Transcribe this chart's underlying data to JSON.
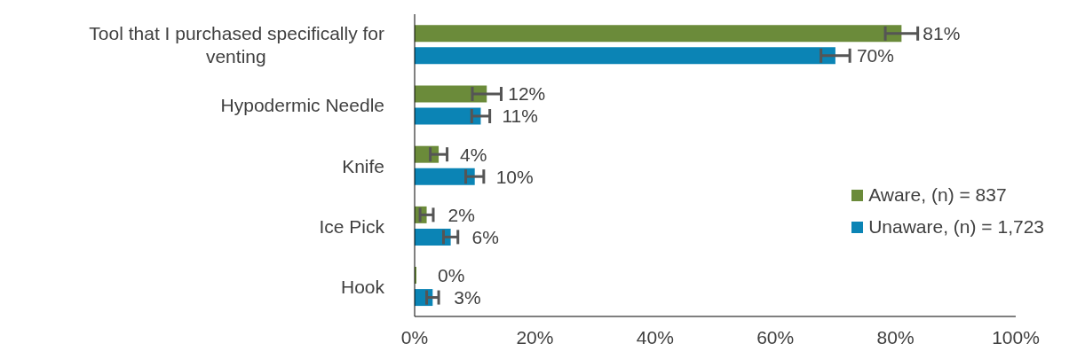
{
  "chart_data": {
    "type": "bar",
    "orientation": "horizontal",
    "categories": [
      "Tool that I purchased specifically for venting",
      "Hypodermic Needle",
      "Knife",
      "Ice Pick",
      "Hook"
    ],
    "series": [
      {
        "name": "Aware, (n) = 837",
        "color": "#6b8b3a",
        "values": [
          81,
          12,
          4,
          2,
          0
        ],
        "value_labels": [
          "81%",
          "12%",
          "4%",
          "2%",
          "0%"
        ],
        "errors": [
          2.7,
          2.4,
          1.4,
          1.1,
          null
        ]
      },
      {
        "name": "Unaware, (n) = 1,723",
        "color": "#0b84b5",
        "values": [
          70,
          11,
          10,
          6,
          3
        ],
        "value_labels": [
          "70%",
          "11%",
          "10%",
          "6%",
          "3%"
        ],
        "errors": [
          2.4,
          1.5,
          1.5,
          1.2,
          1
        ]
      }
    ],
    "xlim": [
      0,
      100
    ],
    "xticks": [
      {
        "value": 0,
        "label": "0%"
      },
      {
        "value": 20,
        "label": "20%"
      },
      {
        "value": 40,
        "label": "40%"
      },
      {
        "value": 60,
        "label": "60%"
      },
      {
        "value": 80,
        "label": "80%"
      },
      {
        "value": 100,
        "label": "100%"
      }
    ],
    "grid": false,
    "legend": "right"
  }
}
